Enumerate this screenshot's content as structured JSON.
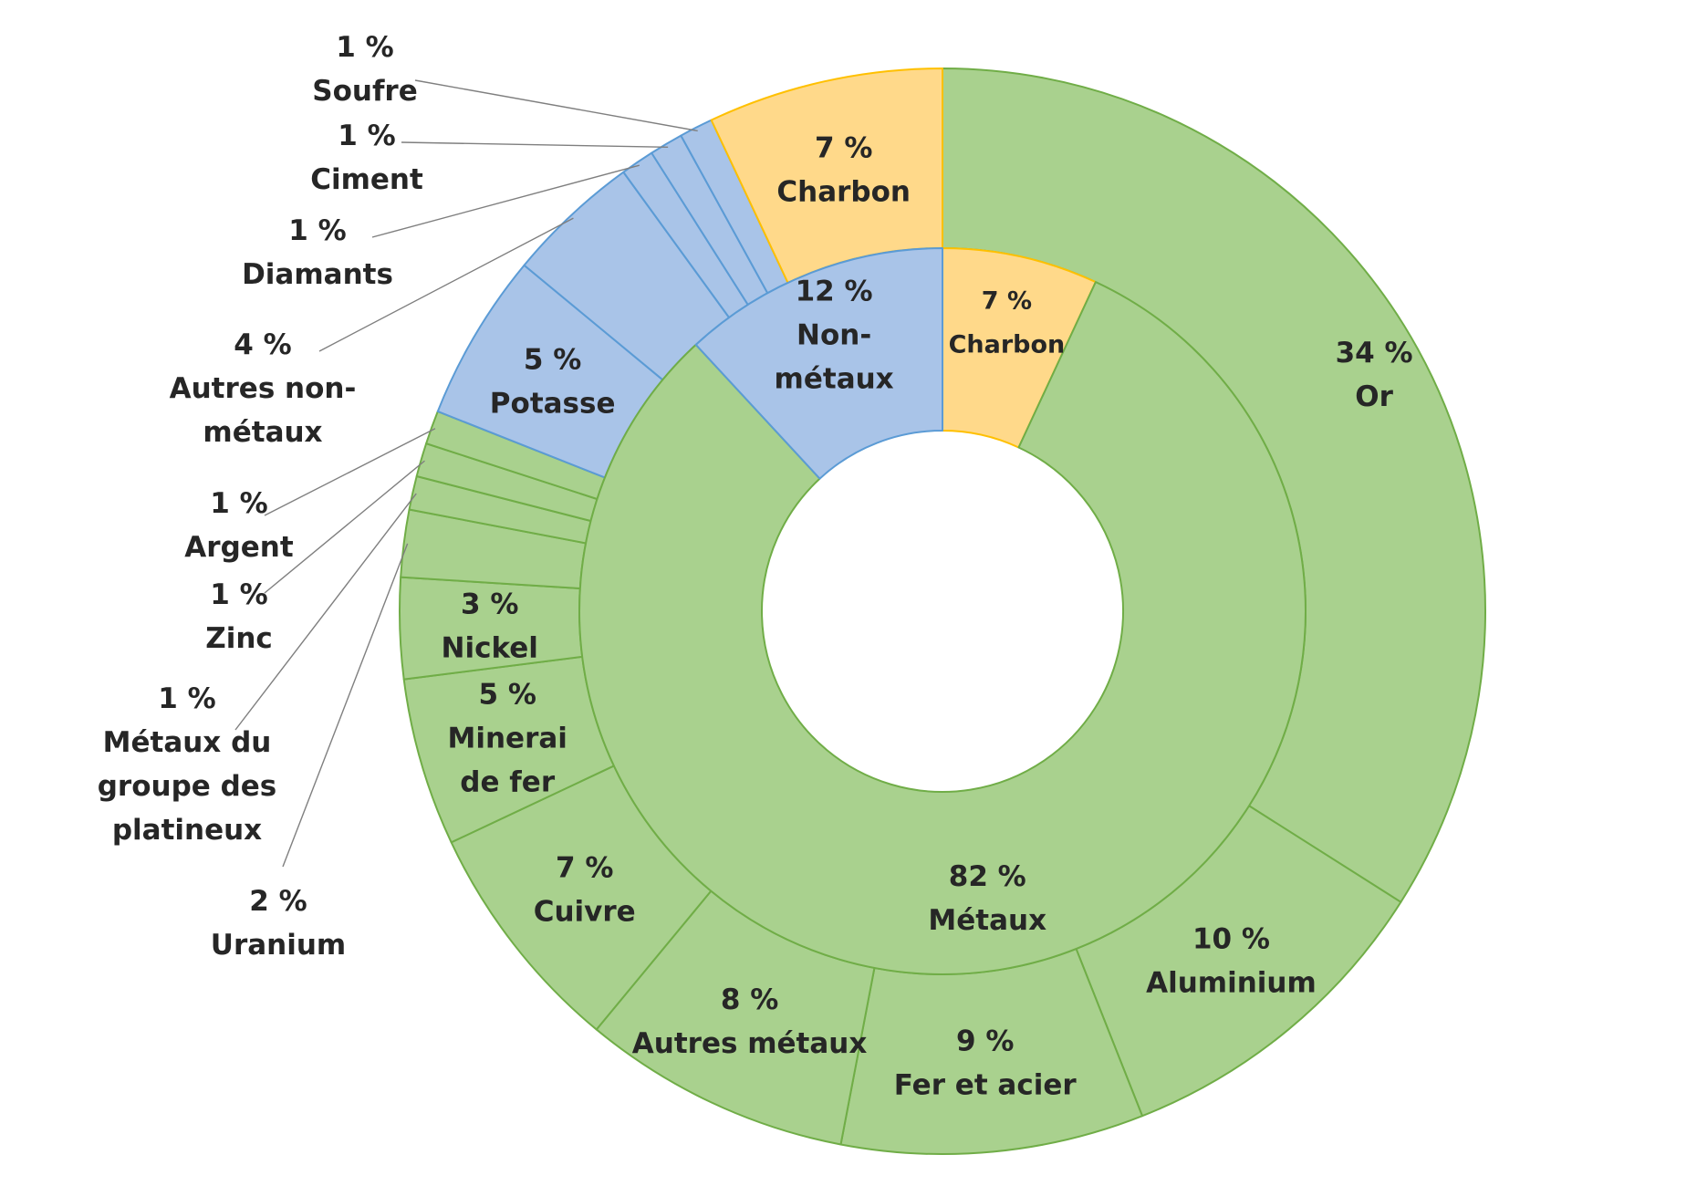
{
  "chart_data": {
    "type": "pie",
    "variant": "two-level-donut",
    "title": "",
    "colors": {
      "metal": "#a9d18e",
      "metal_stroke": "#70ad47",
      "nonmetal": "#a9c4e8",
      "nonmetal_stroke": "#5b9bd5",
      "coal": "#ffd98a",
      "coal_stroke": "#ffc000",
      "text": "#262626",
      "leader": "#7f7f7f"
    },
    "inner": [
      {
        "group": "coal",
        "value": 7,
        "pct_label": "7 %",
        "name_lines": [
          "Charbon"
        ]
      },
      {
        "group": "metal",
        "value": 82,
        "pct_label": "82 %",
        "name_lines": [
          "Métaux"
        ]
      },
      {
        "group": "nonmetal",
        "value": 12,
        "pct_label": "12 %",
        "name_lines": [
          "Non-",
          "métaux"
        ]
      }
    ],
    "outer": [
      {
        "group": "metal",
        "value": 34,
        "pct_label": "34 %",
        "name_lines": [
          "Or"
        ],
        "placement": "inside"
      },
      {
        "group": "metal",
        "value": 10,
        "pct_label": "10 %",
        "name_lines": [
          "Aluminium"
        ],
        "placement": "inside"
      },
      {
        "group": "metal",
        "value": 9,
        "pct_label": "9 %",
        "name_lines": [
          "Fer et acier"
        ],
        "placement": "inside"
      },
      {
        "group": "metal",
        "value": 8,
        "pct_label": "8 %",
        "name_lines": [
          "Autres métaux"
        ],
        "placement": "inside"
      },
      {
        "group": "metal",
        "value": 7,
        "pct_label": "7 %",
        "name_lines": [
          "Cuivre"
        ],
        "placement": "inside"
      },
      {
        "group": "metal",
        "value": 5,
        "pct_label": "5 %",
        "name_lines": [
          "Minerai",
          "de fer"
        ],
        "placement": "inside"
      },
      {
        "group": "metal",
        "value": 3,
        "pct_label": "3 %",
        "name_lines": [
          "Nickel"
        ],
        "placement": "inside"
      },
      {
        "group": "metal",
        "value": 2,
        "pct_label": "2 %",
        "name_lines": [
          "Uranium"
        ],
        "placement": "outside"
      },
      {
        "group": "metal",
        "value": 1,
        "pct_label": "1 %",
        "name_lines": [
          "Métaux du",
          "groupe des",
          "platineux"
        ],
        "placement": "outside"
      },
      {
        "group": "metal",
        "value": 1,
        "pct_label": "1 %",
        "name_lines": [
          "Zinc"
        ],
        "placement": "outside"
      },
      {
        "group": "metal",
        "value": 1,
        "pct_label": "1 %",
        "name_lines": [
          "Argent"
        ],
        "placement": "outside"
      },
      {
        "group": "nonmetal",
        "value": 5,
        "pct_label": "5 %",
        "name_lines": [
          "Potasse"
        ],
        "placement": "inside"
      },
      {
        "group": "nonmetal",
        "value": 4,
        "pct_label": "4 %",
        "name_lines": [
          "Autres non-",
          "métaux"
        ],
        "placement": "outside"
      },
      {
        "group": "nonmetal",
        "value": 1,
        "pct_label": "1 %",
        "name_lines": [
          "Diamants"
        ],
        "placement": "outside"
      },
      {
        "group": "nonmetal",
        "value": 1,
        "pct_label": "1 %",
        "name_lines": [
          "Ciment"
        ],
        "placement": "outside"
      },
      {
        "group": "nonmetal",
        "value": 1,
        "pct_label": "1 %",
        "name_lines": [
          "Soufre"
        ],
        "placement": "outside"
      },
      {
        "group": "coal",
        "value": 7,
        "pct_label": "7 %",
        "name_lines": [
          "Charbon"
        ],
        "placement": "inside"
      }
    ]
  }
}
